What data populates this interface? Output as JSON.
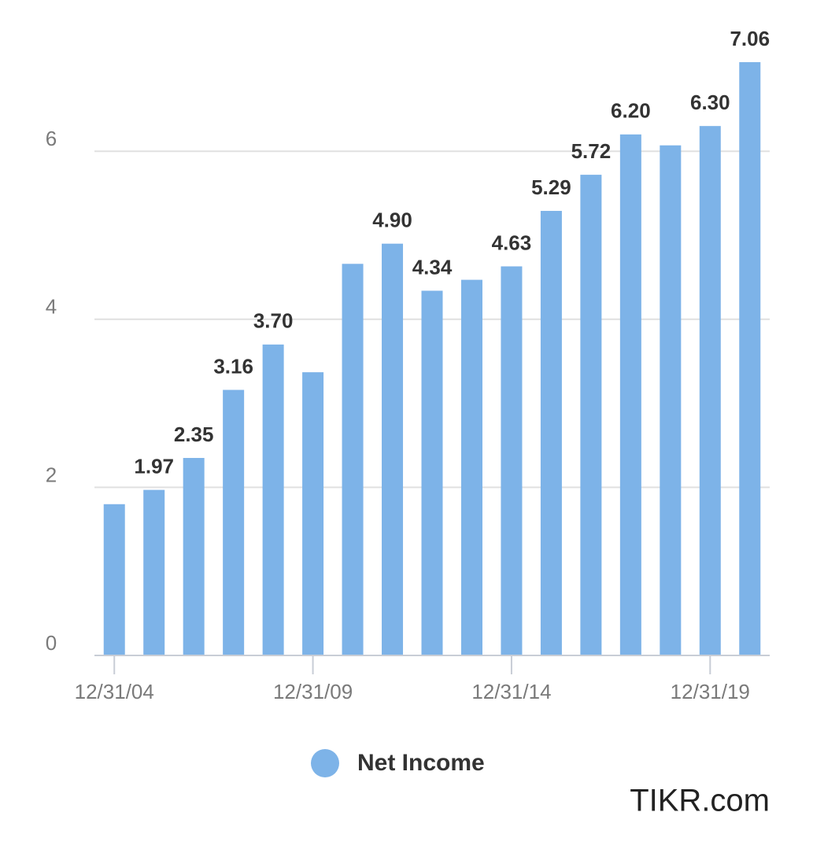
{
  "chart_data": {
    "type": "bar",
    "categories": [
      "12/31/04",
      null,
      null,
      null,
      null,
      "12/31/09",
      null,
      null,
      null,
      null,
      "12/31/14",
      null,
      null,
      null,
      null,
      "12/31/19",
      null
    ],
    "series": [
      {
        "name": "Net Income",
        "color": "#7db3e8",
        "values": [
          1.8,
          1.97,
          2.35,
          3.16,
          3.7,
          3.37,
          4.66,
          4.9,
          4.34,
          4.47,
          4.63,
          5.29,
          5.72,
          6.2,
          6.07,
          6.3,
          7.06
        ],
        "value_labels": [
          null,
          "1.97",
          "2.35",
          "3.16",
          "3.70",
          null,
          null,
          "4.90",
          "4.34",
          null,
          "4.63",
          "5.29",
          "5.72",
          "6.20",
          null,
          "6.30",
          "7.06"
        ]
      }
    ],
    "ylim": [
      0,
      7.5
    ],
    "yticks": [
      0,
      2,
      4,
      6
    ],
    "grid": true,
    "legend": "bottom",
    "watermark": "TIKR.com"
  }
}
